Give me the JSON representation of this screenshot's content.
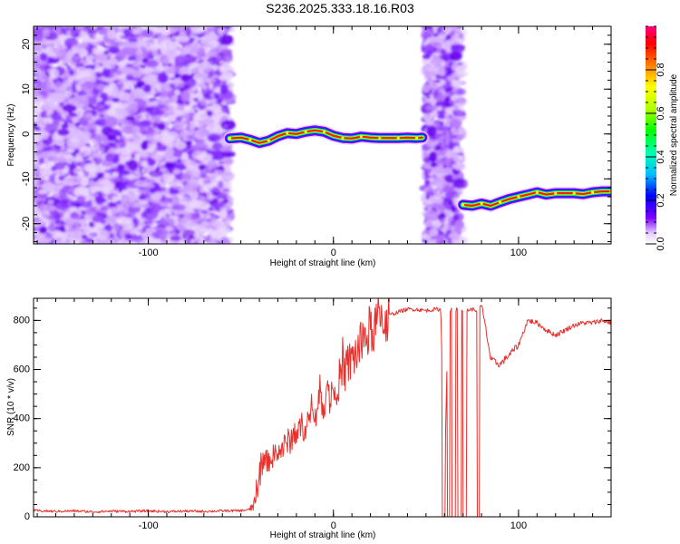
{
  "title": "S236.2025.333.18.16.R03",
  "chart_data": [
    {
      "type": "heatmap",
      "title": "S236.2025.333.18.16.R03",
      "xlabel": "Height of straight line (km)",
      "ylabel": "Frequency (Hz)",
      "xlim": [
        -162,
        150
      ],
      "ylim": [
        -24.5,
        24
      ],
      "xticks": [
        -100,
        0,
        100
      ],
      "yticks": [
        -20,
        -10,
        0,
        10,
        20
      ],
      "colorbar": {
        "label": "Normalized spectral amplitude",
        "range": [
          0,
          1
        ],
        "ticks": [
          0.0,
          0.2,
          0.4,
          0.6,
          0.8
        ]
      },
      "ridge": {
        "segments": [
          {
            "x": [
              -56,
              -50,
              -45,
              -40,
              -35,
              -30,
              -25,
              -20,
              -15,
              -10,
              -5,
              0,
              5,
              10,
              15,
              20,
              25,
              30,
              35,
              40,
              45,
              48
            ],
            "y": [
              -1,
              -0.8,
              -1.3,
              -2,
              -1.5,
              -0.5,
              0.2,
              0,
              0.5,
              0.8,
              0.5,
              -0.4,
              -0.9,
              -1,
              -0.6,
              -0.8,
              -0.9,
              -0.9,
              -0.9,
              -0.8,
              -0.9,
              -0.8
            ]
          },
          {
            "x": [
              70,
              75,
              80,
              85,
              90,
              95,
              100,
              105,
              110,
              115,
              120,
              125,
              130,
              135,
              140,
              145,
              150
            ],
            "y": [
              -15.8,
              -16,
              -15.5,
              -16,
              -15.2,
              -14.5,
              -14,
              -13.5,
              -13,
              -13.5,
              -13.2,
              -13.2,
              -13.2,
              -13.4,
              -13,
              -12.8,
              -12.8
            ]
          }
        ]
      }
    },
    {
      "type": "line",
      "xlabel": "Height of straight line (km)",
      "ylabel": "SNR (10 * v/v)",
      "xlim": [
        -162,
        150
      ],
      "ylim": [
        0,
        890
      ],
      "xticks": [
        -100,
        0,
        100
      ],
      "yticks": [
        0,
        200,
        400,
        600,
        800
      ],
      "series": [
        {
          "color": "#e8302c",
          "x": [
            -162,
            -150,
            -140,
            -130,
            -120,
            -110,
            -100,
            -90,
            -80,
            -70,
            -60,
            -50,
            -45,
            -42,
            -40,
            -38,
            -35,
            -30,
            -25,
            -20,
            -15,
            -10,
            -5,
            0,
            5,
            10,
            15,
            20,
            25,
            30,
            35,
            40,
            45,
            50,
            55,
            58,
            60,
            62,
            65,
            70,
            75,
            78,
            80,
            82,
            85,
            90,
            95,
            100,
            105,
            110,
            115,
            120,
            125,
            130,
            135,
            140,
            145,
            150
          ],
          "y": [
            25,
            22,
            24,
            20,
            23,
            22,
            24,
            21,
            23,
            22,
            24,
            25,
            30,
            60,
            150,
            220,
            230,
            260,
            300,
            340,
            380,
            420,
            480,
            520,
            580,
            640,
            700,
            760,
            800,
            820,
            835,
            845,
            845,
            840,
            845,
            845,
            150,
            840,
            845,
            840,
            845,
            840,
            860,
            780,
            640,
            620,
            660,
            700,
            800,
            790,
            760,
            740,
            760,
            780,
            790,
            790,
            800,
            790
          ]
        }
      ],
      "dropouts": [
        {
          "x0": 58.5,
          "x1": 60.5
        },
        {
          "x0": 61.5,
          "x1": 63
        },
        {
          "x0": 64,
          "x1": 66
        },
        {
          "x0": 67,
          "x1": 69
        },
        {
          "x0": 70,
          "x1": 72
        },
        {
          "x0": 77.5,
          "x1": 79
        }
      ]
    }
  ]
}
